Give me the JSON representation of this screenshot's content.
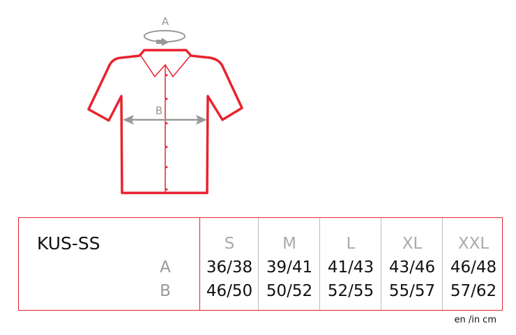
{
  "diagram": {
    "label_a": "A",
    "label_b": "B",
    "outline_color": "#e8222e",
    "measure_color": "#999999"
  },
  "table": {
    "model": "KUS-SS",
    "row_labels": [
      "A",
      "B"
    ],
    "sizes": [
      "S",
      "M",
      "L",
      "XL",
      "XXL"
    ],
    "rows": [
      [
        "36/38",
        "39/41",
        "41/43",
        "43/46",
        "46/48"
      ],
      [
        "46/50",
        "50/52",
        "52/55",
        "55/57",
        "57/62"
      ]
    ]
  },
  "unit_note": "en /in cm"
}
